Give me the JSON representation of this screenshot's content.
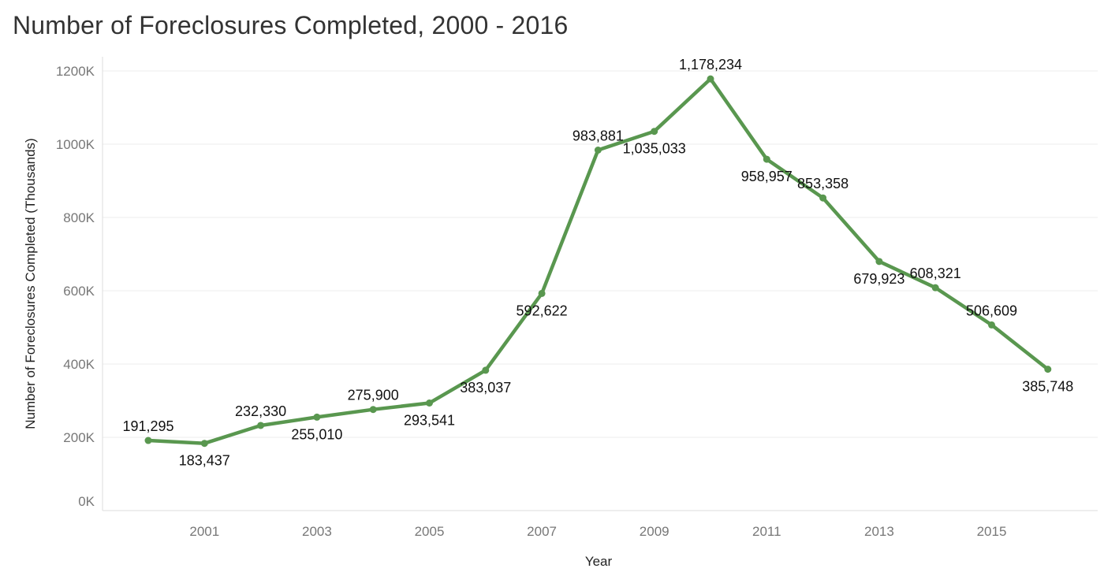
{
  "chart_data": {
    "type": "line",
    "title": "Number of Foreclosures Completed, 2000 - 2016",
    "xlabel": "Year",
    "ylabel": "Number of Foreclosures Completed (Thousands)",
    "x": [
      2000,
      2001,
      2002,
      2003,
      2004,
      2005,
      2006,
      2007,
      2008,
      2009,
      2010,
      2011,
      2012,
      2013,
      2014,
      2015,
      2016
    ],
    "series": [
      {
        "values": [
          191295,
          183437,
          232330,
          255010,
          275900,
          293541,
          383037,
          592622,
          983881,
          1035033,
          1178234,
          958957,
          853358,
          679923,
          608321,
          506609,
          385748
        ],
        "data_labels": [
          "191,295",
          "183,437",
          "232,330",
          "255,010",
          "275,900",
          "293,541",
          "383,037",
          "592,622",
          "983,881",
          "1,035,033",
          "1,178,234",
          "958,957",
          "853,358",
          "679,923",
          "608,321",
          "506,609",
          "385,748"
        ],
        "label_positions": [
          "above",
          "below",
          "above",
          "below",
          "above",
          "below",
          "below",
          "below",
          "above",
          "below",
          "above",
          "below",
          "above",
          "below",
          "above",
          "above",
          "below"
        ]
      }
    ],
    "x_ticks": [
      2001,
      2003,
      2005,
      2007,
      2009,
      2011,
      2013,
      2015
    ],
    "x_tick_labels": [
      "2001",
      "2003",
      "2005",
      "2007",
      "2009",
      "2011",
      "2013",
      "2015"
    ],
    "y_ticks": [
      0,
      200000,
      400000,
      600000,
      800000,
      1000000,
      1200000
    ],
    "y_tick_labels": [
      "0K",
      "200K",
      "400K",
      "600K",
      "800K",
      "1000K",
      "1200K"
    ],
    "ylim": [
      0,
      1200000
    ],
    "grid": true,
    "line_color": "#59974f"
  }
}
